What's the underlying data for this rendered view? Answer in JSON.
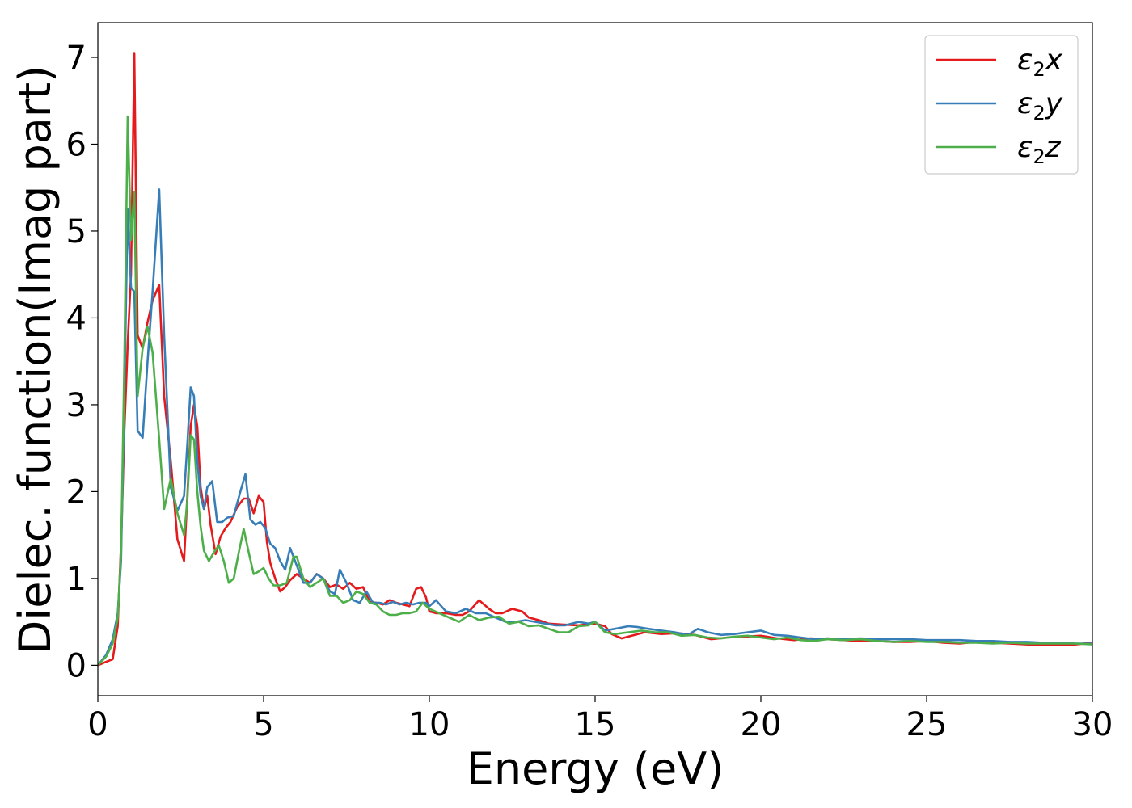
{
  "chart_data": {
    "type": "line",
    "title": "",
    "xlabel": "Energy (eV)",
    "ylabel": "Dielec. function(Imag part)",
    "xlim": [
      0,
      30
    ],
    "ylim": [
      -0.35,
      7.4
    ],
    "xticks": [
      0,
      5,
      10,
      15,
      20,
      25,
      30
    ],
    "yticks": [
      0,
      1,
      2,
      3,
      4,
      5,
      6,
      7
    ],
    "xtick_labels": [
      "0",
      "5",
      "10",
      "15",
      "20",
      "25",
      "30"
    ],
    "ytick_labels": [
      "0",
      "1",
      "2",
      "3",
      "4",
      "5",
      "6",
      "7"
    ],
    "grid": false,
    "legend_position": "top-right",
    "series": [
      {
        "name": "ε₂x",
        "legend_base": "ε",
        "legend_sub": "2",
        "legend_var": "x",
        "color": "#e41a1c",
        "x": [
          0,
          0.25,
          0.45,
          0.6,
          0.7,
          0.8,
          0.9,
          1.0,
          1.1,
          1.2,
          1.35,
          1.5,
          1.65,
          1.85,
          2.0,
          2.2,
          2.4,
          2.6,
          2.7,
          2.8,
          2.9,
          3.0,
          3.1,
          3.2,
          3.3,
          3.4,
          3.55,
          3.7,
          3.85,
          4.0,
          4.2,
          4.4,
          4.55,
          4.7,
          4.85,
          5.0,
          5.1,
          5.2,
          5.35,
          5.5,
          5.65,
          5.8,
          6.0,
          6.2,
          6.4,
          6.6,
          6.8,
          7.0,
          7.2,
          7.4,
          7.6,
          7.8,
          8.0,
          8.2,
          8.4,
          8.6,
          8.8,
          9.0,
          9.2,
          9.4,
          9.6,
          9.75,
          9.9,
          10.0,
          10.2,
          10.5,
          10.8,
          11.0,
          11.2,
          11.5,
          11.8,
          12.0,
          12.2,
          12.5,
          12.8,
          13.0,
          13.3,
          13.6,
          14.0,
          14.5,
          15.0,
          15.3,
          15.5,
          15.8,
          16.0,
          16.5,
          17.0,
          17.5,
          18.0,
          18.5,
          19.0,
          19.5,
          20.0,
          20.5,
          21.0,
          21.5,
          22.0,
          22.5,
          23.0,
          23.5,
          24.0,
          24.5,
          25.0,
          25.5,
          26.0,
          26.5,
          27.0,
          27.5,
          28.0,
          28.5,
          29.0,
          29.5,
          30.0
        ],
        "y": [
          0.0,
          0.04,
          0.07,
          0.45,
          1.4,
          2.7,
          3.7,
          4.5,
          7.05,
          3.8,
          3.65,
          3.95,
          4.2,
          4.38,
          3.1,
          2.35,
          1.45,
          1.2,
          1.95,
          2.75,
          3.0,
          2.75,
          2.05,
          1.8,
          1.95,
          1.62,
          1.28,
          1.48,
          1.58,
          1.65,
          1.82,
          1.92,
          1.92,
          1.75,
          1.95,
          1.88,
          1.42,
          1.18,
          1.0,
          0.85,
          0.9,
          0.98,
          1.05,
          1.0,
          0.95,
          1.05,
          1.0,
          0.9,
          0.93,
          0.88,
          0.95,
          0.88,
          0.9,
          0.73,
          0.72,
          0.7,
          0.75,
          0.72,
          0.7,
          0.68,
          0.88,
          0.9,
          0.78,
          0.62,
          0.6,
          0.6,
          0.58,
          0.58,
          0.62,
          0.75,
          0.65,
          0.6,
          0.6,
          0.65,
          0.62,
          0.55,
          0.52,
          0.48,
          0.47,
          0.46,
          0.48,
          0.45,
          0.36,
          0.31,
          0.33,
          0.38,
          0.36,
          0.37,
          0.35,
          0.3,
          0.32,
          0.33,
          0.34,
          0.31,
          0.29,
          0.31,
          0.3,
          0.29,
          0.28,
          0.28,
          0.27,
          0.27,
          0.28,
          0.26,
          0.25,
          0.27,
          0.26,
          0.25,
          0.24,
          0.23,
          0.23,
          0.24,
          0.26
        ]
      },
      {
        "name": "ε₂y",
        "legend_base": "ε",
        "legend_sub": "2",
        "legend_var": "y",
        "color": "#377eb8",
        "x": [
          0,
          0.25,
          0.45,
          0.6,
          0.7,
          0.8,
          0.9,
          1.0,
          1.1,
          1.2,
          1.35,
          1.5,
          1.65,
          1.85,
          2.0,
          2.2,
          2.4,
          2.6,
          2.7,
          2.8,
          2.9,
          3.0,
          3.1,
          3.2,
          3.3,
          3.45,
          3.6,
          3.75,
          3.9,
          4.1,
          4.3,
          4.45,
          4.6,
          4.75,
          4.9,
          5.05,
          5.2,
          5.35,
          5.5,
          5.65,
          5.8,
          6.0,
          6.2,
          6.4,
          6.6,
          6.8,
          7.0,
          7.15,
          7.3,
          7.5,
          7.7,
          7.9,
          8.1,
          8.3,
          8.5,
          8.7,
          8.9,
          9.1,
          9.3,
          9.5,
          9.7,
          9.9,
          10.0,
          10.2,
          10.5,
          10.8,
          11.1,
          11.4,
          11.7,
          12.0,
          12.3,
          12.6,
          12.9,
          13.2,
          13.5,
          13.8,
          14.1,
          14.5,
          14.8,
          15.0,
          15.3,
          15.6,
          16.0,
          16.3,
          16.6,
          17.0,
          17.4,
          17.8,
          18.1,
          18.4,
          18.8,
          19.2,
          19.6,
          20.0,
          20.4,
          20.8,
          21.2,
          21.6,
          22.0,
          22.5,
          23.0,
          23.5,
          24.0,
          24.5,
          25.0,
          25.5,
          26.0,
          26.5,
          27.0,
          27.5,
          28.0,
          28.5,
          29.0,
          29.5,
          30.0
        ],
        "y": [
          0.0,
          0.12,
          0.3,
          0.6,
          1.2,
          3.1,
          5.25,
          4.35,
          4.3,
          2.7,
          2.62,
          3.5,
          4.3,
          5.48,
          3.8,
          2.05,
          1.78,
          1.95,
          2.55,
          3.2,
          3.1,
          2.35,
          1.95,
          1.8,
          2.05,
          2.12,
          1.65,
          1.65,
          1.7,
          1.72,
          2.0,
          2.2,
          1.68,
          1.62,
          1.65,
          1.58,
          1.4,
          1.35,
          1.2,
          1.1,
          1.35,
          1.15,
          0.95,
          0.95,
          1.05,
          1.0,
          0.85,
          0.82,
          1.1,
          0.95,
          0.75,
          0.72,
          0.85,
          0.72,
          0.72,
          0.7,
          0.73,
          0.7,
          0.72,
          0.7,
          0.72,
          0.72,
          0.68,
          0.75,
          0.62,
          0.6,
          0.65,
          0.6,
          0.6,
          0.55,
          0.5,
          0.5,
          0.52,
          0.5,
          0.48,
          0.46,
          0.46,
          0.5,
          0.48,
          0.5,
          0.4,
          0.42,
          0.45,
          0.44,
          0.42,
          0.4,
          0.38,
          0.35,
          0.42,
          0.38,
          0.35,
          0.36,
          0.38,
          0.4,
          0.35,
          0.34,
          0.32,
          0.3,
          0.31,
          0.3,
          0.31,
          0.3,
          0.3,
          0.3,
          0.29,
          0.29,
          0.29,
          0.28,
          0.28,
          0.27,
          0.27,
          0.26,
          0.26,
          0.25,
          0.25
        ]
      },
      {
        "name": "ε₂z",
        "legend_base": "ε",
        "legend_sub": "2",
        "legend_var": "z",
        "color": "#4daf4a",
        "x": [
          0,
          0.25,
          0.45,
          0.6,
          0.7,
          0.8,
          0.9,
          1.0,
          1.1,
          1.2,
          1.35,
          1.5,
          1.65,
          1.85,
          2.0,
          2.2,
          2.4,
          2.6,
          2.7,
          2.8,
          2.9,
          3.0,
          3.1,
          3.2,
          3.35,
          3.5,
          3.65,
          3.8,
          3.95,
          4.1,
          4.25,
          4.4,
          4.55,
          4.7,
          4.85,
          5.0,
          5.15,
          5.3,
          5.5,
          5.7,
          5.9,
          6.0,
          6.2,
          6.4,
          6.6,
          6.8,
          7.0,
          7.2,
          7.4,
          7.6,
          7.8,
          8.0,
          8.2,
          8.4,
          8.6,
          8.8,
          9.0,
          9.2,
          9.4,
          9.6,
          9.8,
          10.0,
          10.3,
          10.6,
          10.9,
          11.2,
          11.5,
          11.8,
          12.1,
          12.4,
          12.7,
          13.0,
          13.3,
          13.6,
          13.9,
          14.2,
          14.5,
          14.8,
          15.0,
          15.3,
          15.6,
          16.0,
          16.4,
          16.8,
          17.2,
          17.6,
          18.0,
          18.4,
          18.8,
          19.2,
          19.6,
          20.0,
          20.4,
          20.8,
          21.2,
          21.6,
          22.0,
          22.5,
          23.0,
          23.5,
          24.0,
          24.5,
          25.0,
          25.5,
          26.0,
          26.5,
          27.0,
          27.5,
          28.0,
          28.5,
          29.0,
          29.5,
          30.0
        ],
        "y": [
          0.0,
          0.1,
          0.25,
          0.55,
          1.3,
          3.5,
          6.32,
          4.9,
          5.45,
          3.1,
          3.65,
          3.9,
          3.6,
          2.6,
          1.8,
          2.15,
          1.75,
          1.5,
          1.9,
          2.65,
          2.6,
          2.0,
          1.6,
          1.32,
          1.2,
          1.3,
          1.38,
          1.2,
          0.95,
          1.0,
          1.3,
          1.57,
          1.3,
          1.05,
          1.08,
          1.12,
          1.0,
          0.92,
          0.92,
          0.95,
          1.25,
          1.25,
          1.0,
          0.9,
          0.95,
          1.0,
          0.8,
          0.8,
          0.72,
          0.75,
          0.85,
          0.82,
          0.72,
          0.7,
          0.62,
          0.58,
          0.58,
          0.6,
          0.6,
          0.62,
          0.72,
          0.65,
          0.6,
          0.55,
          0.5,
          0.58,
          0.52,
          0.55,
          0.56,
          0.48,
          0.5,
          0.45,
          0.46,
          0.42,
          0.38,
          0.38,
          0.45,
          0.46,
          0.5,
          0.38,
          0.36,
          0.38,
          0.4,
          0.38,
          0.38,
          0.34,
          0.35,
          0.32,
          0.31,
          0.33,
          0.34,
          0.32,
          0.3,
          0.32,
          0.29,
          0.28,
          0.3,
          0.29,
          0.3,
          0.28,
          0.27,
          0.28,
          0.27,
          0.27,
          0.26,
          0.26,
          0.25,
          0.26,
          0.25,
          0.25,
          0.25,
          0.25,
          0.24
        ]
      }
    ]
  }
}
